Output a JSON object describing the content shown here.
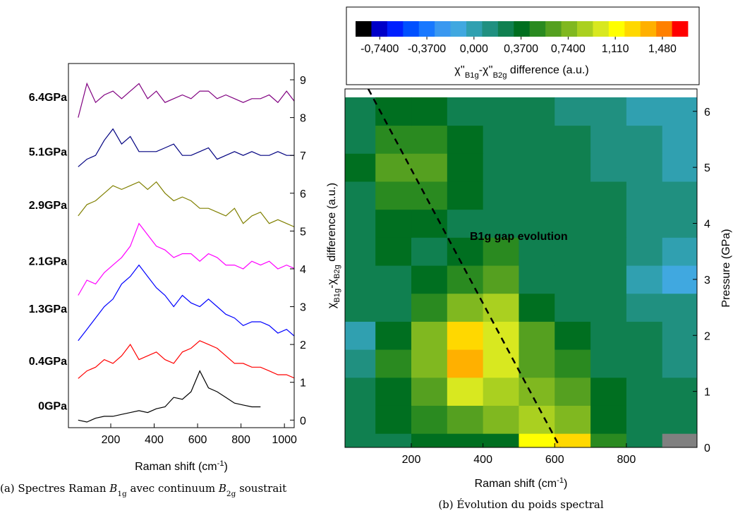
{
  "chart_data": [
    {
      "type": "line",
      "x": [
        50,
        90,
        130,
        170,
        210,
        250,
        290,
        330,
        370,
        410,
        450,
        490,
        530,
        570,
        610,
        650,
        690,
        730,
        770,
        810,
        850,
        890,
        930,
        970,
        1010,
        1050
      ],
      "series": [
        {
          "name": "0GPa",
          "color": "#000000",
          "values": [
            0.0,
            -0.05,
            0.05,
            0.1,
            0.1,
            0.15,
            0.2,
            0.25,
            0.2,
            0.3,
            0.35,
            0.6,
            0.55,
            0.75,
            1.3,
            0.85,
            0.75,
            0.6,
            0.45,
            0.4,
            0.35,
            0.35,
            null,
            null,
            null,
            null
          ]
        },
        {
          "name": "0.4GPa",
          "color": "#ff0000",
          "values": [
            1.1,
            1.3,
            1.4,
            1.6,
            1.5,
            1.7,
            2.0,
            1.6,
            1.7,
            1.8,
            1.6,
            1.5,
            1.8,
            1.9,
            2.1,
            2.0,
            1.9,
            1.7,
            1.5,
            1.5,
            1.4,
            1.4,
            1.3,
            1.2,
            1.2,
            1.1
          ]
        },
        {
          "name": "1.3GPa",
          "color": "#0000ff",
          "values": [
            2.1,
            2.4,
            2.7,
            3.0,
            3.2,
            3.6,
            3.8,
            4.1,
            3.8,
            3.5,
            3.3,
            3.0,
            3.3,
            3.1,
            3.0,
            3.2,
            3.0,
            2.8,
            2.7,
            2.5,
            2.6,
            2.6,
            2.5,
            2.3,
            2.4,
            2.2
          ]
        },
        {
          "name": "2.1GPa",
          "color": "#ff00ff",
          "values": [
            3.3,
            3.7,
            3.6,
            3.9,
            4.1,
            4.3,
            4.6,
            5.2,
            4.9,
            4.6,
            4.5,
            4.3,
            4.4,
            4.4,
            4.2,
            4.4,
            4.3,
            4.1,
            4.1,
            4.0,
            4.2,
            4.1,
            4.2,
            4.0,
            4.1,
            4.0
          ]
        },
        {
          "name": "2.9GPa",
          "color": "#808000",
          "values": [
            5.4,
            5.7,
            5.8,
            6.0,
            6.2,
            6.1,
            6.2,
            6.3,
            6.1,
            6.3,
            6.0,
            5.8,
            5.9,
            5.8,
            5.6,
            5.6,
            5.5,
            5.4,
            5.6,
            5.2,
            5.4,
            5.5,
            5.2,
            5.3,
            5.2,
            5.1
          ]
        },
        {
          "name": "5.1GPa",
          "color": "#000080",
          "values": [
            6.7,
            6.9,
            7.0,
            7.4,
            7.7,
            7.3,
            7.5,
            7.1,
            7.1,
            7.1,
            7.2,
            7.3,
            7.0,
            7.0,
            7.1,
            7.2,
            6.9,
            7.0,
            7.1,
            7.0,
            7.1,
            7.0,
            7.0,
            7.1,
            7.0,
            7.0
          ]
        },
        {
          "name": "6.4GPa",
          "color": "#800080",
          "values": [
            8.0,
            8.9,
            8.4,
            8.6,
            8.7,
            8.5,
            8.7,
            8.9,
            8.5,
            8.7,
            8.4,
            8.5,
            8.6,
            8.5,
            8.7,
            8.7,
            8.5,
            8.6,
            8.5,
            8.4,
            8.5,
            8.5,
            8.6,
            8.4,
            8.7,
            8.4
          ]
        }
      ],
      "xlim": [
        5,
        1045
      ],
      "xticks": [
        200,
        400,
        600,
        800,
        1000
      ],
      "ylim": [
        -0.2,
        9.43
      ],
      "yticks": [
        0,
        1,
        2,
        3,
        4,
        5,
        6,
        7,
        8,
        9
      ],
      "x_label": [
        "Raman shift (cm",
        "-1",
        ")"
      ],
      "y_label": [
        "χ",
        "B1g",
        "-χ",
        "B2g",
        " difference (a.u.)"
      ],
      "caption": [
        "(a) Spectres Raman ",
        "B",
        "1g",
        " avec continuum ",
        "B",
        "2g",
        " soustrait"
      ]
    },
    {
      "type": "contour",
      "x": [
        50,
        150,
        250,
        350,
        450,
        550,
        650,
        750,
        850,
        950
      ],
      "y": [
        0,
        0.5,
        1,
        1.5,
        2,
        2.5,
        3,
        3.5,
        4,
        4.5,
        5,
        5.5,
        6
      ],
      "z": [
        [
          0.3,
          0.3,
          0.35,
          0.4,
          0.4,
          1.1,
          1.3,
          0.5,
          0.3,
          null
        ],
        [
          0.3,
          0.4,
          0.5,
          0.6,
          0.8,
          0.9,
          0.7,
          0.4,
          0.3,
          0.2
        ],
        [
          0.2,
          0.4,
          0.6,
          1.0,
          0.9,
          0.7,
          0.6,
          0.4,
          0.3,
          0.2
        ],
        [
          0.1,
          0.5,
          0.7,
          1.4,
          1.0,
          0.6,
          0.5,
          0.3,
          0.2,
          0.1
        ],
        [
          0.0,
          0.4,
          0.7,
          1.2,
          1.0,
          0.6,
          0.4,
          0.3,
          0.2,
          0.1
        ],
        [
          0.2,
          0.3,
          0.5,
          0.8,
          0.9,
          0.4,
          0.3,
          0.2,
          0.1,
          0.1
        ],
        [
          0.3,
          0.3,
          0.4,
          0.5,
          0.6,
          0.3,
          0.3,
          0.2,
          0.0,
          -0.1
        ],
        [
          0.3,
          0.4,
          0.3,
          0.4,
          0.5,
          0.3,
          0.3,
          0.2,
          0.1,
          0.0
        ],
        [
          0.3,
          0.4,
          0.4,
          0.3,
          0.3,
          0.3,
          0.2,
          0.2,
          0.1,
          0.1
        ],
        [
          0.3,
          0.5,
          0.5,
          0.4,
          0.3,
          0.3,
          0.2,
          0.2,
          0.1,
          0.1
        ],
        [
          0.4,
          0.6,
          0.6,
          0.4,
          0.3,
          0.2,
          0.2,
          0.1,
          0.1,
          0.0
        ],
        [
          0.3,
          0.5,
          0.5,
          0.4,
          0.3,
          0.2,
          0.2,
          0.1,
          0.1,
          0.0
        ],
        [
          0.3,
          0.4,
          0.4,
          0.3,
          0.2,
          0.2,
          0.1,
          0.1,
          0.0,
          0.0
        ]
      ],
      "xlim": [
        15,
        997
      ],
      "xticks": [
        200,
        400,
        600,
        800
      ],
      "ylim": [
        0,
        6.4
      ],
      "yticks": [
        0,
        1,
        2,
        3,
        4,
        5,
        6
      ],
      "x_label": [
        "Raman shift (cm",
        "-1",
        ")"
      ],
      "y_label": "Pressure (GPa)",
      "colors": [
        "#000000",
        "#0000c8",
        "#0020ff",
        "#0050ff",
        "#1878ff",
        "#3a98f0",
        "#40a8e0",
        "#30a0b0",
        "#209080",
        "#108050",
        "#006f20",
        "#2a8a20",
        "#55a020",
        "#80b820",
        "#aad020",
        "#d8e820",
        "#ffff00",
        "#ffd800",
        "#ffb000",
        "#ff8000",
        "#ff0000"
      ],
      "missing_color": "#808080",
      "clim": [
        -0.93,
        1.68
      ],
      "cticks": [
        {
          "value": -0.74,
          "label": "-0,7400"
        },
        {
          "value": -0.37,
          "label": "-0,3700"
        },
        {
          "value": 0,
          "label": "0,000"
        },
        {
          "value": 0.37,
          "label": "0,3700"
        },
        {
          "value": 0.74,
          "label": "0,7400"
        },
        {
          "value": 1.11,
          "label": "1,110"
        },
        {
          "value": 1.48,
          "label": "1,480"
        }
      ],
      "colorbar_label": [
        "χ''",
        "B1g",
        "-χ''",
        "B2g",
        " difference (a.u.)"
      ],
      "gap_line": {
        "name": "B1g gap evolution",
        "x": [
          80,
          615
        ],
        "y": [
          6.4,
          0
        ]
      },
      "caption": "(b) Évolution du poids spectral"
    }
  ]
}
